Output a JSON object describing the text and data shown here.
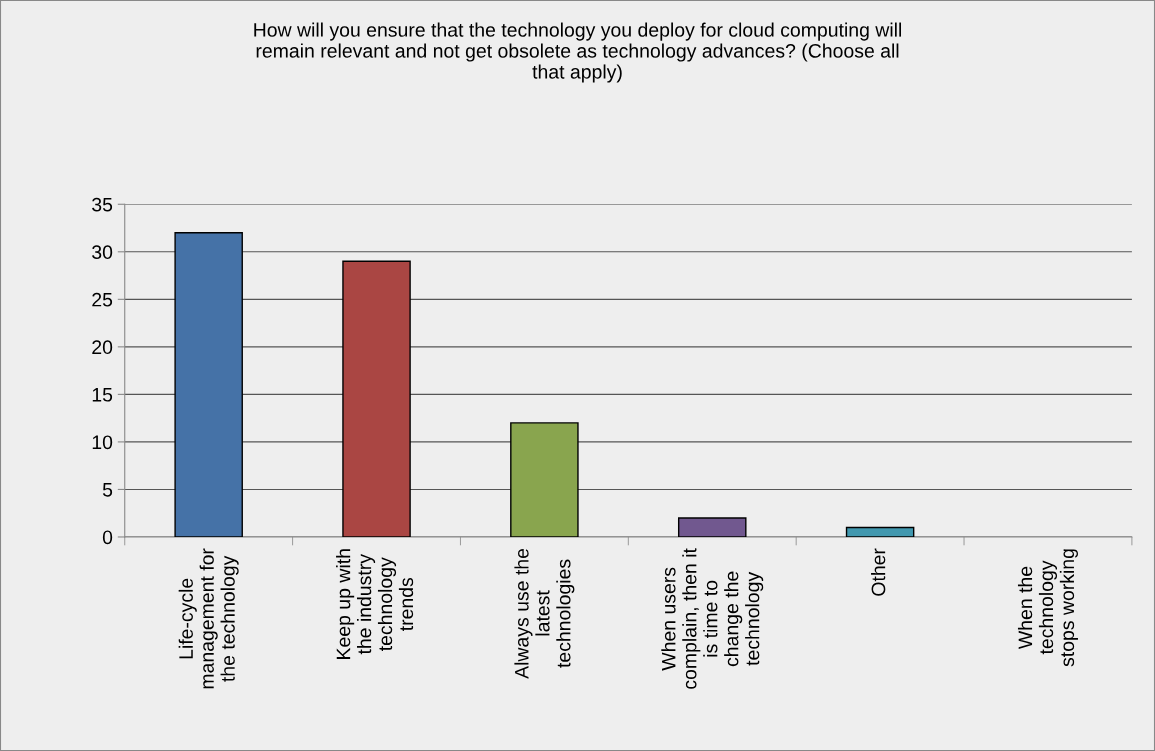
{
  "chart_data": {
    "type": "bar",
    "title": "How will you ensure that the technology you deploy for cloud computing will\nremain relevant and not get obsolete as technology advances? (Choose all\nthat apply)",
    "categories": [
      "Life-cycle\nmanagement for\nthe technology",
      "Keep up with\nthe industry\ntechnology\ntrends",
      "Always use the\nlatest\ntechnologies",
      "When users\ncomplain, then it\nis time to\nchange the\ntechnology",
      "Other",
      "When the\ntechnology\nstops working"
    ],
    "values": [
      32,
      29,
      12,
      2,
      1,
      0
    ],
    "colors": [
      "#4572a7",
      "#aa4643",
      "#89a54e",
      "#71588f",
      "#4198af",
      null
    ],
    "ylim": [
      0,
      35
    ],
    "yticks": [
      0,
      5,
      10,
      15,
      20,
      25,
      30,
      35
    ],
    "grid": "y",
    "legend": false
  }
}
